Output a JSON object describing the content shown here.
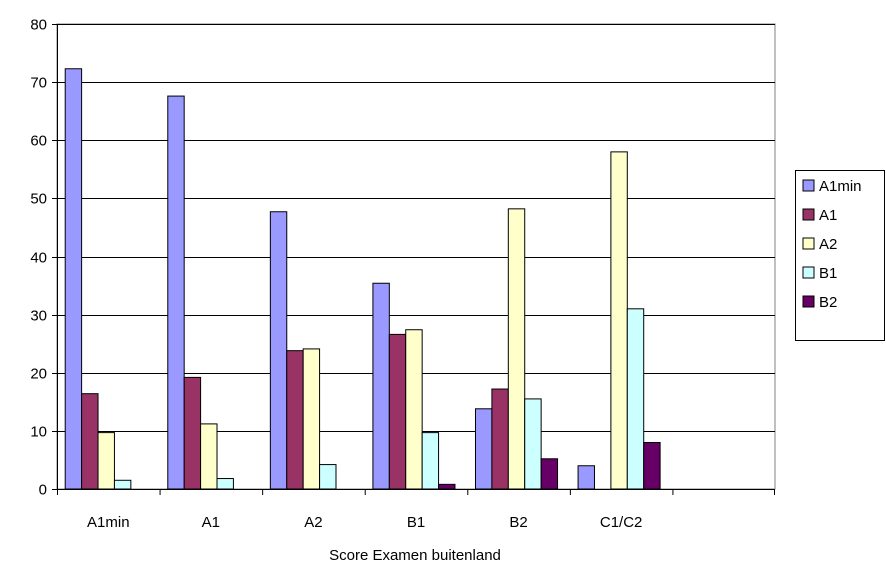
{
  "chart_data": {
    "type": "bar",
    "title": "",
    "xlabel": "Score Examen buitenland",
    "ylabel": "",
    "ylim": [
      0,
      80
    ],
    "yticks": [
      0,
      10,
      20,
      30,
      40,
      50,
      60,
      70,
      80
    ],
    "grid": true,
    "legend_position": "right",
    "categories": [
      "A1min",
      "A1",
      "A2",
      "B1",
      "B2",
      "C1/C2",
      ""
    ],
    "series": [
      {
        "name": "A1min",
        "color": "#9999FF",
        "values": [
          72.3,
          67.6,
          47.7,
          35.4,
          13.8,
          4.0,
          null
        ]
      },
      {
        "name": "A1",
        "color": "#993366",
        "values": [
          16.4,
          19.2,
          23.8,
          26.6,
          17.2,
          null,
          null
        ]
      },
      {
        "name": "A2",
        "color": "#FFFFCC",
        "values": [
          9.7,
          11.2,
          24.1,
          27.4,
          48.2,
          58.0,
          null
        ]
      },
      {
        "name": "B1",
        "color": "#CCFFFF",
        "values": [
          1.5,
          1.8,
          4.2,
          9.7,
          15.5,
          31.0,
          null
        ]
      },
      {
        "name": "B2",
        "color": "#660066",
        "values": [
          null,
          null,
          null,
          0.8,
          5.2,
          8.0,
          null
        ]
      }
    ]
  }
}
